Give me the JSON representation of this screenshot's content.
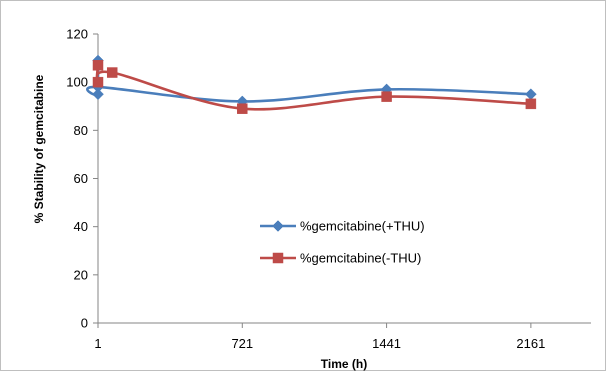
{
  "chart_data": {
    "type": "line",
    "title": "",
    "xlabel": "Time (h)",
    "ylabel": "% Stability of gemcitabine",
    "x_ticks": [
      1,
      721,
      1441,
      2161
    ],
    "xlim": [
      1,
      2461
    ],
    "ylim": [
      0,
      120
    ],
    "y_ticks": [
      0,
      20,
      40,
      60,
      80,
      100,
      120
    ],
    "grid": false,
    "smooth": true,
    "legend_position": "center",
    "series": [
      {
        "name": "%gemcitabine(+THU)",
        "color": "#4a7ebb",
        "marker": "diamond",
        "x": [
          1,
          1,
          1,
          721,
          1441,
          2161
        ],
        "y": [
          109,
          95,
          98,
          92,
          97,
          95
        ]
      },
      {
        "name": "%gemcitabine(-THU)",
        "color": "#be4b48",
        "marker": "square",
        "x": [
          1,
          1,
          72,
          721,
          1441,
          2161
        ],
        "y": [
          107,
          100,
          104,
          89,
          94,
          91
        ]
      }
    ]
  }
}
